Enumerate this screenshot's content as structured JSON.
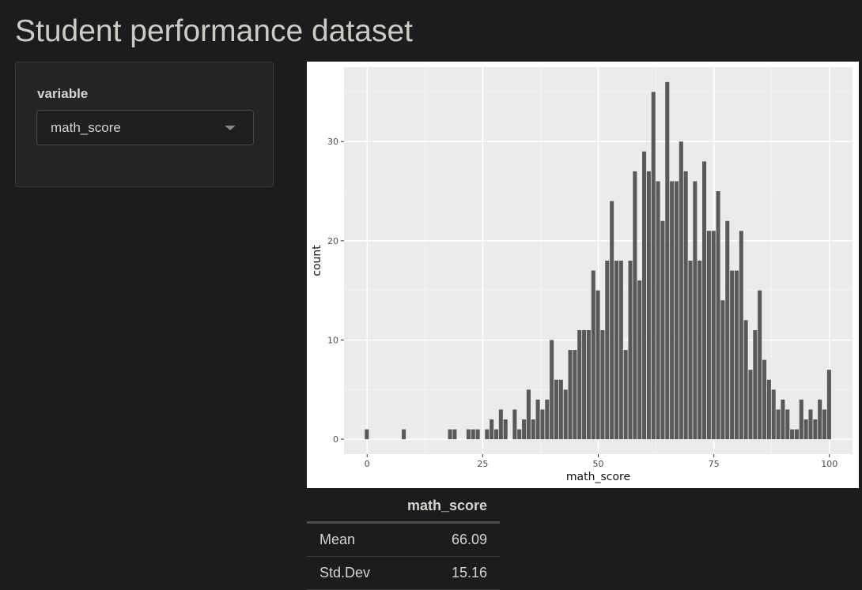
{
  "page": {
    "title": "Student performance dataset"
  },
  "sidebar": {
    "variable_label": "variable",
    "variable_select": {
      "value": "math_score"
    }
  },
  "stats_table": {
    "header": [
      "",
      "math_score"
    ],
    "rows": [
      {
        "label": "Mean",
        "value": "66.09"
      },
      {
        "label": "Std.Dev",
        "value": "15.16"
      }
    ]
  },
  "chart_data": {
    "type": "bar",
    "title": "",
    "xlabel": "math_score",
    "ylabel": "count",
    "xlim": [
      -5,
      105
    ],
    "ylim": [
      -1.5,
      37.5
    ],
    "x_ticks": [
      0,
      25,
      50,
      75,
      100
    ],
    "y_ticks": [
      0,
      10,
      20,
      30
    ],
    "grid": true,
    "bar_color": "#595959",
    "panel_color": "#ebebeb",
    "x": [
      0,
      8,
      18,
      19,
      22,
      23,
      24,
      26,
      27,
      28,
      29,
      30,
      32,
      33,
      34,
      35,
      36,
      37,
      38,
      39,
      40,
      41,
      42,
      43,
      44,
      45,
      46,
      47,
      48,
      49,
      50,
      51,
      52,
      53,
      54,
      55,
      56,
      57,
      58,
      59,
      60,
      61,
      62,
      63,
      64,
      65,
      66,
      67,
      68,
      69,
      70,
      71,
      72,
      73,
      74,
      75,
      76,
      77,
      78,
      79,
      80,
      81,
      82,
      83,
      84,
      85,
      86,
      87,
      88,
      89,
      90,
      91,
      92,
      93,
      94,
      95,
      96,
      97,
      98,
      99,
      100
    ],
    "values": [
      1,
      1,
      1,
      1,
      1,
      1,
      1,
      1,
      2,
      1,
      3,
      2,
      3,
      1,
      2,
      5,
      2,
      4,
      3,
      4,
      10,
      6,
      6,
      5,
      9,
      9,
      11,
      11,
      11,
      17,
      15,
      11,
      18,
      24,
      18,
      18,
      9,
      18,
      27,
      16,
      29,
      27,
      35,
      26,
      22,
      36,
      26,
      26,
      30,
      27,
      18,
      26,
      18,
      28,
      21,
      21,
      25,
      14,
      22,
      17,
      17,
      21,
      12,
      7,
      11,
      15,
      8,
      6,
      5,
      3,
      4,
      3,
      1,
      1,
      4,
      2,
      3,
      2,
      4,
      3,
      7
    ]
  }
}
